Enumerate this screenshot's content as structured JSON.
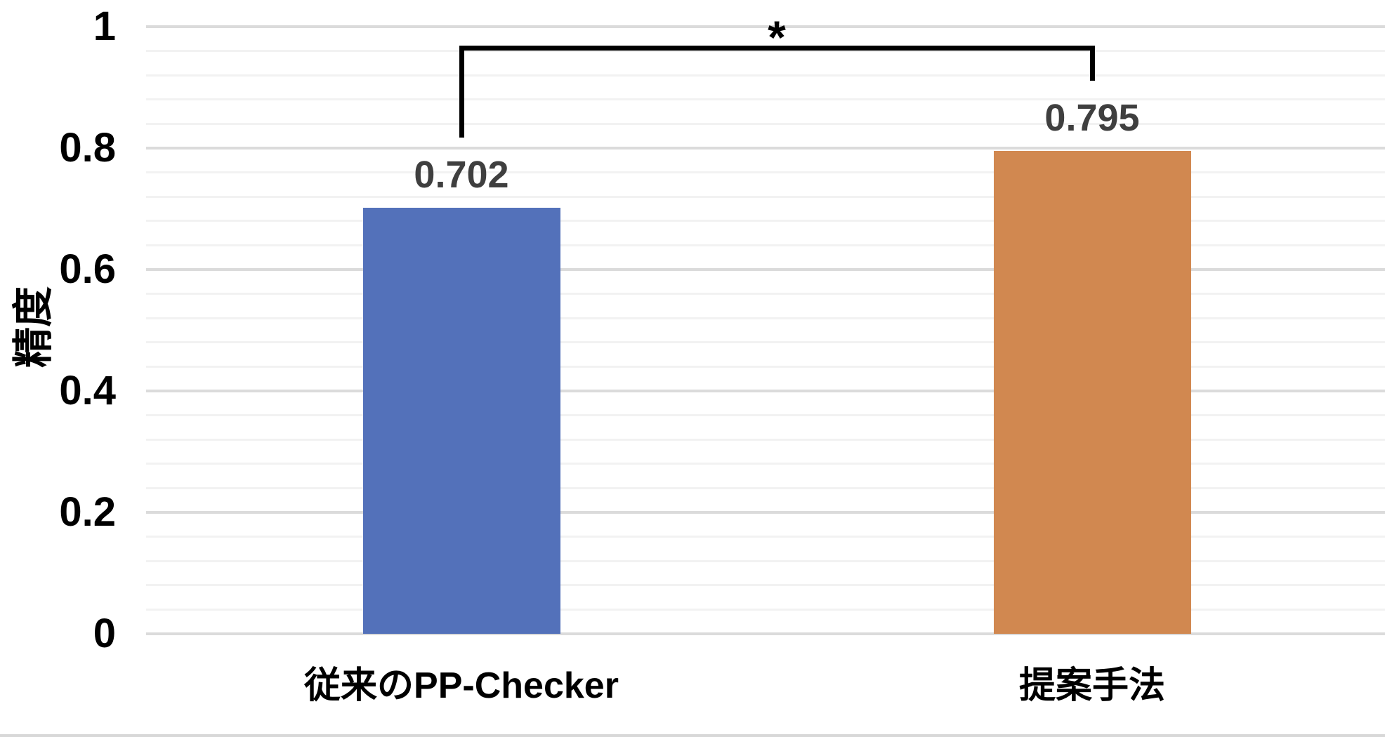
{
  "chart_data": {
    "type": "bar",
    "title": "",
    "categories": [
      "従来のPP-Checker",
      "提案手法"
    ],
    "values": [
      0.702,
      0.795
    ],
    "data_labels": [
      "0.702",
      "0.795"
    ],
    "series_colors": [
      "#5371BA",
      "#D18850"
    ],
    "data_label_color": "#3F3F3F",
    "ylabel": "精度",
    "xlabel": "",
    "ylim": [
      0,
      1
    ],
    "ytick_values": [
      0,
      0.2,
      0.4,
      0.6,
      0.8,
      1
    ],
    "ytick_labels": [
      "0",
      "0.2",
      "0.4",
      "0.6",
      "0.8",
      "1"
    ],
    "major_unit": 0.2,
    "minor_unit": 0.04,
    "grid": "horizontal major and minor gridlines, no vertical gridlines",
    "legend": "none",
    "significance_bracket": {
      "label": "*",
      "between_categories": [
        "従来のPP-Checker",
        "提案手法"
      ],
      "color": "#000000"
    }
  }
}
